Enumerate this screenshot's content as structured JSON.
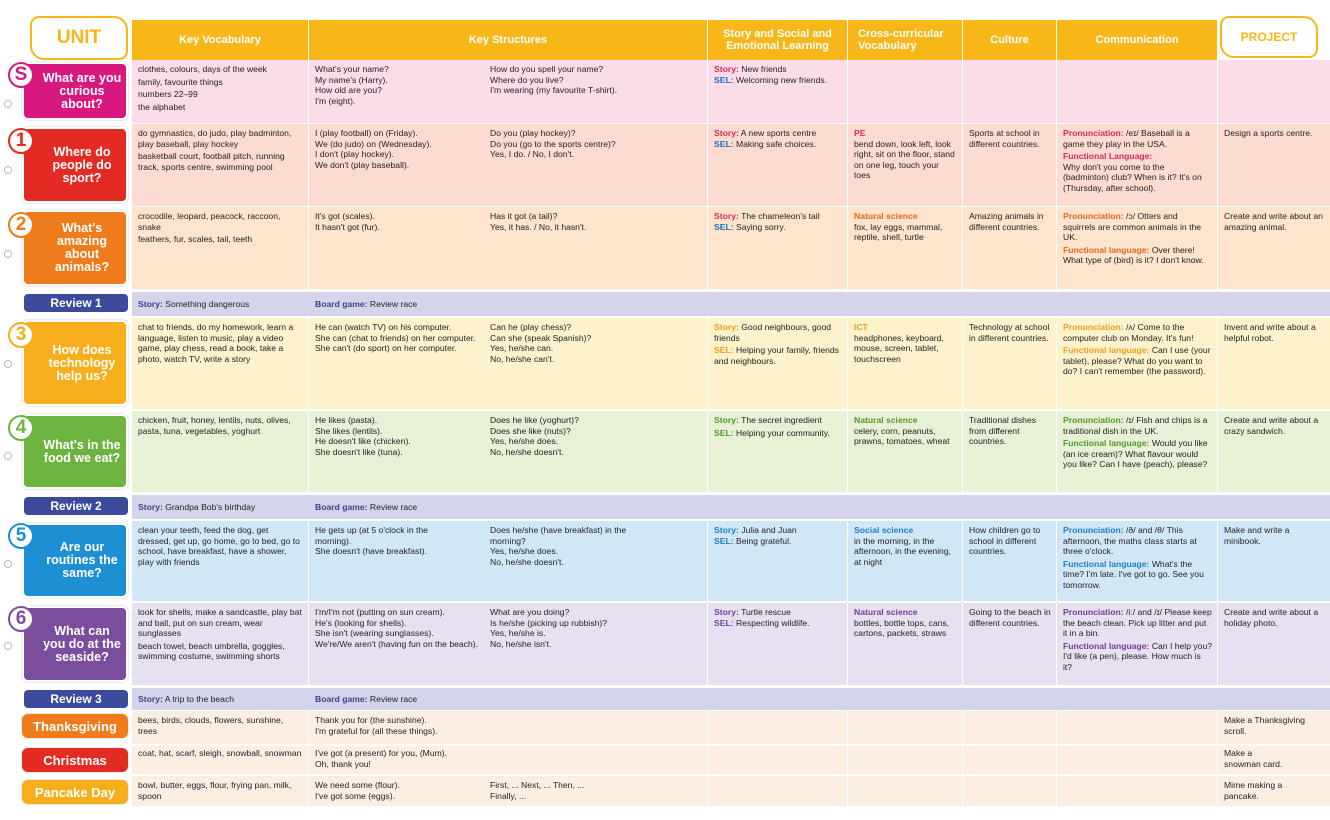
{
  "header": {
    "unit": "UNIT",
    "vocab": "Key Vocabulary",
    "structures": "Key Structures",
    "story": "Story and Social and Emotional Learning",
    "cross": "Cross-curricular Vocabulary",
    "culture": "Culture",
    "communication": "Communication",
    "project": "PROJECT"
  },
  "labels": {
    "story": "Story:",
    "sel": "SEL:",
    "board": "Board game:",
    "pron": "Pronunciation:",
    "func_caps": "Functional Language:",
    "func": "Functional language:"
  },
  "units": {
    "s": {
      "num": "S",
      "title": "What are you curious about?",
      "color": "#d8187e",
      "vocab": [
        "clothes, colours, days of the week",
        "family, favourite things",
        "numbers 22–99",
        "the alphabet"
      ],
      "struct1": [
        "What's your name?",
        "My name's (Harry).",
        "How old are you?",
        "I'm (eight)."
      ],
      "struct2": [
        "How do you spell your name?",
        "Where do you live?",
        "I'm wearing (my favourite T-shirt)."
      ],
      "story": "New friends",
      "sel": "Welcoming new friends.",
      "cc_subject": "",
      "cc": "",
      "culture": "",
      "pron": "",
      "func": "",
      "project": ""
    },
    "u1": {
      "num": "1",
      "title": "Where do people do sport?",
      "color": "#e32a23",
      "vocab": [
        "do gymnastics, do judo, play badminton, play baseball, play hockey",
        "basketball court, football pitch, running track, sports centre, swimming pool"
      ],
      "struct1": [
        "I (play football) on (Friday).",
        "We (do judo) on (Wednesday).",
        "I don't (play hockey).",
        "We don't (play baseball)."
      ],
      "struct2": [
        "Do you (play hockey)?",
        "Do you (go to the sports centre)?",
        "Yes, I do. / No, I don't."
      ],
      "story": "A new sports centre",
      "sel": "Making safe choices.",
      "cc_subject": "PE",
      "cc": "bend down, look left, look right, sit on the floor, stand on one leg, touch your toes",
      "culture": "Sports at school in different countries.",
      "pron": "/eɪ/ Baseball is a game they play in the USA.",
      "func": "Why don't you come to the (badminton) club? When is it? It's on (Thursday, after school).",
      "project": "Design a sports centre."
    },
    "u2": {
      "num": "2",
      "title": "What's amazing about animals?",
      "color": "#ee7c1b",
      "vocab": [
        "crocodile, leopard, peacock, raccoon, snake",
        "feathers, fur, scales, tail, teeth"
      ],
      "struct1": [
        "It's got (scales).",
        "It hasn't got (fur)."
      ],
      "struct2": [
        "Has it got (a tail)?",
        "Yes, it has. / No, it hasn't."
      ],
      "story": "The chameleon's tail",
      "sel": "Saying sorry.",
      "cc_subject": "Natural science",
      "cc": "fox, lay eggs, mammal, reptile, shell, turtle",
      "culture": "Amazing animals in different countries.",
      "pron": "/ɔ/ Otters and squirrels are common animals in the UK.",
      "func": "Over there! What type of (bird) is it? I don't know.",
      "project": "Create and write about an amazing animal."
    },
    "r1": {
      "title": "Review 1",
      "story": "Something dangerous",
      "board": "Review race"
    },
    "u3": {
      "num": "3",
      "title": "How does technology help us?",
      "color": "#f6ae1a",
      "vocab": [
        "chat to friends, do my homework, learn a language, listen to music, play a video game, play chess, read a book, take a photo, watch TV, write a story"
      ],
      "struct1": [
        "He can (watch TV) on his computer.",
        "She can (chat to friends) on her computer.",
        "She can't (do sport) on her computer."
      ],
      "struct2": [
        "Can he (play chess)?",
        "Can she (speak Spanish)?",
        "Yes, he/she can.",
        "No, he/she can't."
      ],
      "story": "Good neighbours, good friends",
      "sel": "Helping your family, friends and neighbours.",
      "cc_subject": "ICT",
      "cc": "headphones, keyboard, mouse, screen, tablet, touchscreen",
      "culture": "Technology at school in different countries.",
      "pron": "/ʌ/ Come to the computer club on Monday. It's fun!",
      "func": "Can I use (your tablet), please? What do you want to do? I can't remember (the password).",
      "project": "Invent and write about a helpful robot."
    },
    "u4": {
      "num": "4",
      "title": "What's in the food we eat?",
      "color": "#6db33f",
      "vocab": [
        "chicken, fruit, honey, lentils, nuts, olives, pasta, tuna, vegetables, yoghurt"
      ],
      "struct1": [
        "He likes (pasta).",
        "She likes (lentils).",
        "He doesn't like (chicken).",
        "She doesn't like (tuna)."
      ],
      "struct2": [
        "Does he like (yoghurt)?",
        "Does she like (nuts)?",
        "Yes, he/she does.",
        "No, he/she doesn't."
      ],
      "story": "The secret ingredient",
      "sel": "Helping your community.",
      "cc_subject": "Natural science",
      "cc": "celery, corn, peanuts, prawns, tomatoes, wheat",
      "culture": "Traditional dishes from different countries.",
      "pron": "/ɪ/ Fish and chips is a traditional dish in the UK.",
      "func": "Would you like (an ice cream)? What flavour would you like? Can I have (peach), please?",
      "project": "Create and write about a crazy sandwich."
    },
    "r2": {
      "title": "Review 2",
      "story": "Grandpa Bob's birthday",
      "board": "Review race"
    },
    "u5": {
      "num": "5",
      "title": "Are our routines the same?",
      "color": "#1d8fd2",
      "vocab": [
        "clean your teeth, feed the dog, get dressed, get up, go home, go to bed, go to school, have breakfast, have a shower, play with friends"
      ],
      "struct1": [
        "He gets up (at 5 o'clock in the morning).",
        "She doesn't (have breakfast)."
      ],
      "struct2": [
        "Does he/she (have breakfast) in the morning?",
        "Yes, he/she does.",
        "No, he/she doesn't."
      ],
      "story": "Julia and Juan",
      "sel": "Being grateful.",
      "cc_subject": "Social science",
      "cc": "in the morning, in the afternoon, in the evening, at night",
      "culture": "How children go to school in different countries.",
      "pron": "/ð/ and /θ/ This afternoon, the maths class starts at three o'clock.",
      "func": "What's the time? I'm late. I've got to go. See you tomorrow.",
      "project": "Make and write a minibook."
    },
    "u6": {
      "num": "6",
      "title": "What can you do at the seaside?",
      "color": "#7a4e9d",
      "vocab": [
        "look for shells, make a sandcastle, play bat and ball, put on sun cream, wear sunglasses",
        "beach towel, beach umbrella, goggles, swimming costume, swimming shorts"
      ],
      "struct1": [
        "I'm/I'm not (putting on sun cream).",
        "He's (looking for shells).",
        "She isn't (wearing sunglasses).",
        "We're/We aren't (having fun on the beach)."
      ],
      "struct2": [
        "What are you doing?",
        "Is he/she (picking up rubbish)?",
        "Yes, he/she is.",
        "No, he/she isn't."
      ],
      "story": "Turtle rescue",
      "sel": "Respecting wildlife.",
      "cc_subject": "Natural science",
      "cc": "bottles, bottle tops, cans, cartons, packets, straws",
      "culture": "Going to the beach in different countries.",
      "pron": "/iː/ and /ɪ/ Please keep the beach clean. Pick up litter and put it in a bin.",
      "func": "Can I help you? I'd like (a pen), please. How much is it?",
      "project": "Create and write about a holiday photo."
    },
    "r3": {
      "title": "Review 3",
      "story": "A trip to the beach",
      "board": "Review race"
    },
    "thanks": {
      "title": "Thanksgiving",
      "color": "#ee7c1b",
      "vocab": "bees, birds, clouds, flowers, sunshine, trees",
      "struct1": [
        "Thank you for (the sunshine).",
        "I'm grateful for (all these things)."
      ],
      "struct2": [],
      "project": "Make a Thanksgiving scroll."
    },
    "xmas": {
      "title": "Christmas",
      "color": "#e32a23",
      "vocab": "coat, hat, scarf, sleigh, snowball, snowman",
      "struct1": [
        "I've got (a present) for you, (Mum).",
        "Oh, thank you!"
      ],
      "struct2": [],
      "project": "Make a snowman card."
    },
    "pancake": {
      "title": "Pancake Day",
      "color": "#f6ae1a",
      "vocab": "bowl, butter, eggs, flour, frying pan, milk, spoon",
      "struct1": [
        "We need some (flour).",
        "I've got some (eggs)."
      ],
      "struct2": [
        "First, ... Next, ... Then, ...",
        "Finally, ..."
      ],
      "project": "Mime making a pancake."
    }
  }
}
